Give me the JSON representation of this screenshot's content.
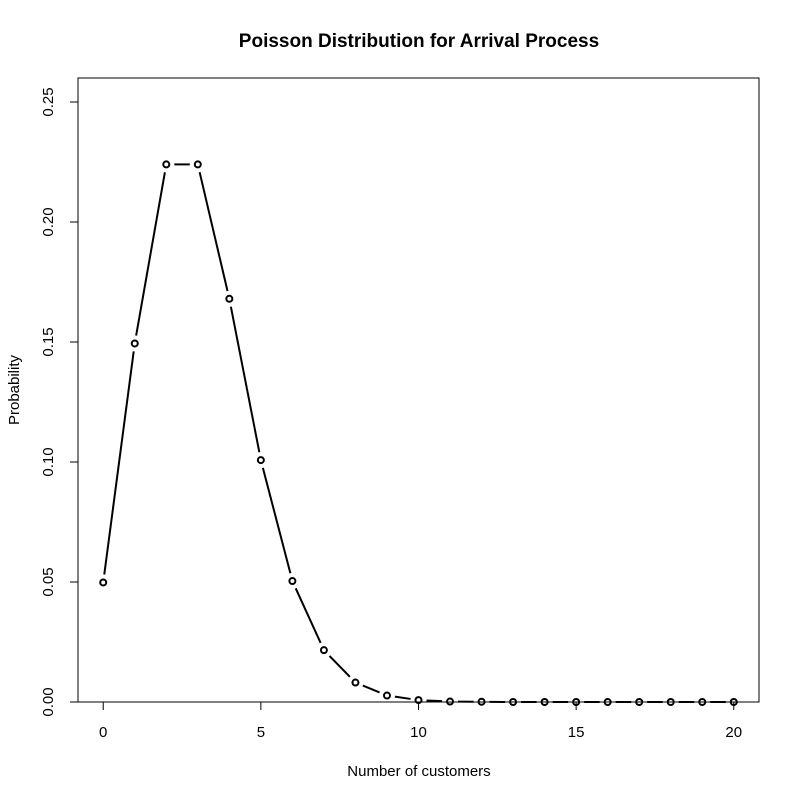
{
  "chart_data": {
    "type": "line",
    "title": "Poisson Distribution for Arrival Process",
    "xlabel": "Number of customers",
    "ylabel": "Probability",
    "xlim": [
      -0.8,
      20.8
    ],
    "ylim": [
      0.0,
      0.26
    ],
    "x_ticks": [
      0,
      5,
      10,
      15,
      20
    ],
    "y_ticks": [
      0.0,
      0.05,
      0.1,
      0.15,
      0.2,
      0.25
    ],
    "x_tick_labels": [
      "0",
      "5",
      "10",
      "15",
      "20"
    ],
    "y_tick_labels": [
      "0.00",
      "0.05",
      "0.10",
      "0.15",
      "0.20",
      "0.25"
    ],
    "grid": false,
    "series": [
      {
        "style": "points-and-lines",
        "color": "#000000",
        "x": [
          0,
          1,
          2,
          3,
          4,
          5,
          6,
          7,
          8,
          9,
          10,
          11,
          12,
          13,
          14,
          15,
          16,
          17,
          18,
          19,
          20
        ],
        "values": [
          0.0498,
          0.1494,
          0.224,
          0.224,
          0.168,
          0.1008,
          0.0504,
          0.0216,
          0.0081,
          0.0027,
          0.0008,
          0.0002,
          0.0001,
          0.0,
          0.0,
          0.0,
          0.0,
          0.0,
          0.0,
          0.0,
          0.0
        ]
      }
    ]
  }
}
